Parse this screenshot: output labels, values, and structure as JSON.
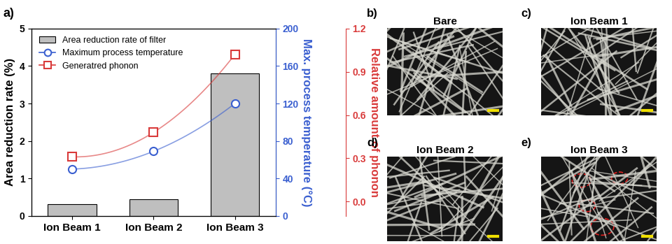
{
  "chart_data": {
    "type": "bar",
    "title": "a)",
    "categories": [
      "Ion Beam 1",
      "Ion Beam 2",
      "Ion Beam 3"
    ],
    "series": [
      {
        "name": "Area reduction rate of filter",
        "type": "bar",
        "color": "#bfbfbf",
        "values": [
          0.32,
          0.45,
          3.8
        ]
      },
      {
        "name": "Maximum process temperature",
        "type": "line",
        "axis": "y2",
        "color": "#3a5fd0",
        "marker": "o",
        "values": [
          50,
          69,
          120
        ]
      },
      {
        "name": "Generatred phonon",
        "type": "line",
        "axis": "y3",
        "color": "#d93a3a",
        "marker": "s",
        "values": [
          0.31,
          0.48,
          1.02
        ]
      }
    ],
    "y_label": "Area reduction rate (%)",
    "y2_label": "Max. process temperature (°C)",
    "y3_label": "Relative amount of phonon",
    "ylim": [
      0,
      5
    ],
    "yticks": [
      0,
      1,
      2,
      3,
      4,
      5
    ],
    "y2lim": [
      0,
      200
    ],
    "y2ticks": [
      0,
      40,
      80,
      120,
      160,
      200
    ],
    "y3lim": [
      -0.1,
      1.2
    ],
    "y3ticks": [
      {
        "value": 0.0,
        "label": "0.0"
      },
      0.3,
      0.6,
      0.9,
      1.2
    ],
    "legend": "upper left"
  },
  "images": [
    {
      "label": "b)",
      "title": "Bare"
    },
    {
      "label": "c)",
      "title": "Ion Beam 1"
    },
    {
      "label": "d)",
      "title": "Ion Beam 2"
    },
    {
      "label": "e)",
      "title": "Ion Beam 3"
    }
  ]
}
